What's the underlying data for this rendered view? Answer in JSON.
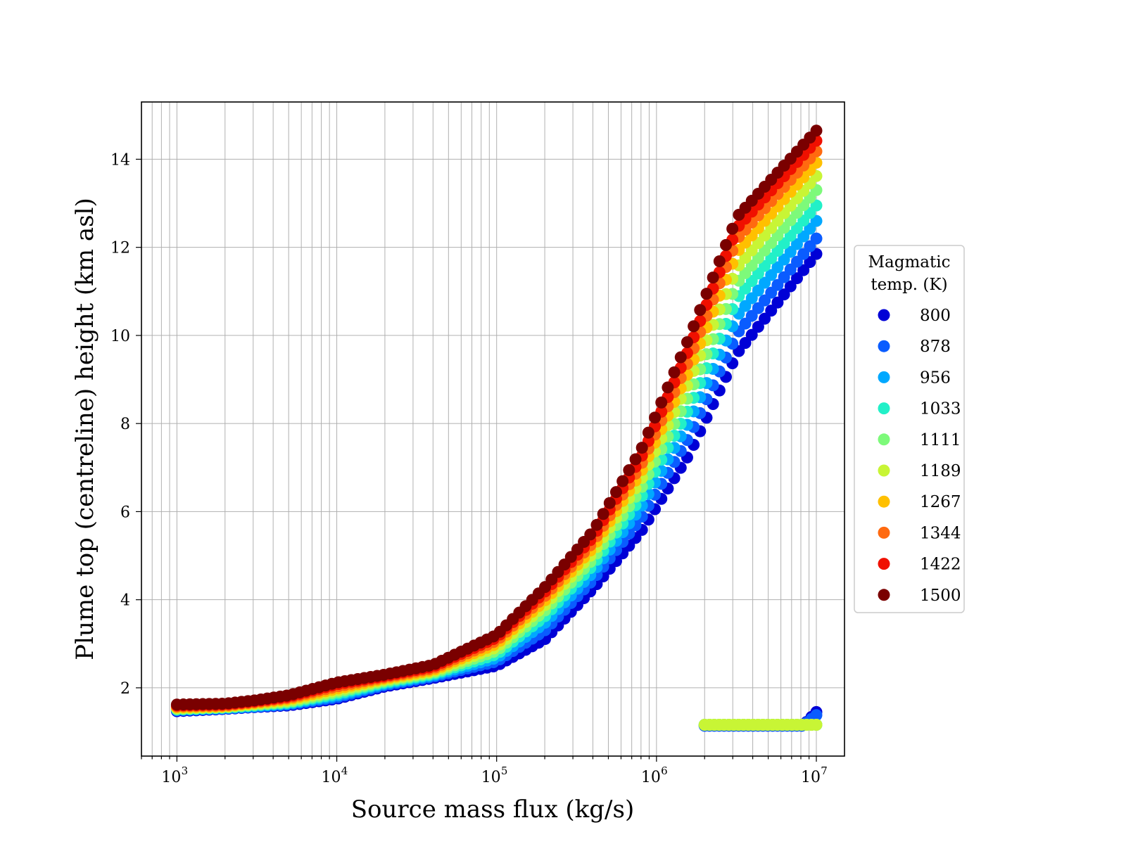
{
  "chart_data": {
    "type": "scatter",
    "title": "",
    "xlabel": "Source mass flux (kg/s)",
    "ylabel": "Plume top (centreline) height (km asl)",
    "x_scale": "log",
    "xlim": [
      600,
      15000000
    ],
    "ylim": [
      0.45,
      15.3
    ],
    "grid": true,
    "x_major_ticks": [
      1000,
      10000,
      100000,
      1000000,
      10000000
    ],
    "x_tick_labels": [
      {
        "base": "10",
        "exp": "3"
      },
      {
        "base": "10",
        "exp": "4"
      },
      {
        "base": "10",
        "exp": "5"
      },
      {
        "base": "10",
        "exp": "6"
      },
      {
        "base": "10",
        "exp": "7"
      }
    ],
    "y_ticks": [
      2,
      4,
      6,
      8,
      10,
      12,
      14
    ],
    "y_tick_labels": [
      "2",
      "4",
      "6",
      "8",
      "10",
      "12",
      "14"
    ],
    "legend": {
      "title_lines": [
        "Magmatic",
        "temp. (K)"
      ],
      "placement": "outside-right"
    },
    "series": [
      {
        "name": "800",
        "color": "#0000d6",
        "y": [
          1.47,
          1.52,
          1.56,
          1.6,
          1.75,
          2.03,
          2.22,
          2.5,
          3.1,
          4.25,
          5.55,
          7.3,
          9.6,
          11.85
        ]
      },
      {
        "name": "878",
        "color": "#0a5cff",
        "y": [
          1.49,
          1.53,
          1.57,
          1.62,
          1.78,
          2.06,
          2.25,
          2.6,
          3.3,
          4.45,
          5.85,
          7.7,
          10.05,
          12.2
        ]
      },
      {
        "name": "956",
        "color": "#00a8ff",
        "y": [
          1.5,
          1.54,
          1.58,
          1.64,
          1.82,
          2.09,
          2.28,
          2.68,
          3.47,
          4.62,
          6.1,
          8.05,
          10.45,
          12.6
        ]
      },
      {
        "name": "1033",
        "color": "#22f0c8",
        "y": [
          1.51,
          1.55,
          1.6,
          1.66,
          1.86,
          2.12,
          2.31,
          2.76,
          3.62,
          4.78,
          6.32,
          8.35,
          10.85,
          12.95
        ]
      },
      {
        "name": "1111",
        "color": "#7dfa7a",
        "y": [
          1.52,
          1.56,
          1.61,
          1.68,
          1.9,
          2.15,
          2.34,
          2.84,
          3.75,
          4.92,
          6.52,
          8.65,
          11.2,
          13.3
        ]
      },
      {
        "name": "1189",
        "color": "#c8f535",
        "y": [
          1.54,
          1.57,
          1.63,
          1.71,
          1.94,
          2.18,
          2.37,
          2.92,
          3.87,
          5.06,
          6.72,
          8.95,
          11.55,
          13.62
        ]
      },
      {
        "name": "1267",
        "color": "#ffc000",
        "y": [
          1.56,
          1.58,
          1.65,
          1.74,
          1.98,
          2.21,
          2.4,
          3.0,
          3.98,
          5.18,
          6.9,
          9.2,
          11.9,
          13.92
        ]
      },
      {
        "name": "1344",
        "color": "#ff6a10",
        "y": [
          1.58,
          1.6,
          1.67,
          1.77,
          2.03,
          2.24,
          2.44,
          3.07,
          4.08,
          5.3,
          7.06,
          9.45,
          12.2,
          14.18
        ]
      },
      {
        "name": "1422",
        "color": "#f01000",
        "y": [
          1.6,
          1.62,
          1.69,
          1.8,
          2.08,
          2.27,
          2.48,
          3.14,
          4.18,
          5.42,
          7.22,
          9.7,
          12.45,
          14.42
        ]
      },
      {
        "name": "1500",
        "color": "#7a0000",
        "y": [
          1.62,
          1.64,
          1.71,
          1.83,
          2.12,
          2.3,
          2.52,
          3.2,
          4.28,
          5.55,
          7.4,
          9.95,
          12.7,
          14.65
        ]
      }
    ],
    "x": [
      1000,
      2000,
      3000,
      5000,
      10000,
      20000,
      40000,
      100000,
      200000,
      400000,
      800000,
      1600000,
      3200000,
      10000000
    ],
    "low_branch": {
      "x_range": [
        2000000,
        10000000
      ],
      "series": [
        {
          "name": "800",
          "y_start": 1.14,
          "y_end": 1.45
        },
        {
          "name": "878",
          "y_start": 1.14,
          "y_end": 1.38
        },
        {
          "name": "956",
          "y_start": 1.16,
          "y_end": 1.16
        },
        {
          "name": "1033",
          "y_start": 1.16,
          "y_end": 1.16
        },
        {
          "name": "1111",
          "y_start": 1.16,
          "y_end": 1.16
        },
        {
          "name": "1189",
          "y_start": 1.16,
          "y_end": 1.16
        }
      ]
    }
  }
}
